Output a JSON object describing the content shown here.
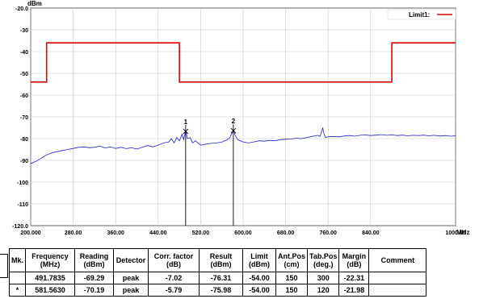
{
  "chart_data": {
    "type": "line",
    "y_unit": "dBm",
    "x_unit": "MHz",
    "ylim": [
      -120,
      -20
    ],
    "xlim": [
      200,
      1000
    ],
    "y_ticks": [
      {
        "v": -20,
        "label": "-20.0"
      },
      {
        "v": -30,
        "label": "-30"
      },
      {
        "v": -40,
        "label": "-40"
      },
      {
        "v": -50,
        "label": "-50"
      },
      {
        "v": -60,
        "label": "-60"
      },
      {
        "v": -70,
        "label": "-70"
      },
      {
        "v": -80,
        "label": "-80"
      },
      {
        "v": -90,
        "label": "-90"
      },
      {
        "v": -100,
        "label": "-100"
      },
      {
        "v": -110,
        "label": "-110"
      },
      {
        "v": -120,
        "label": "-120.0"
      }
    ],
    "x_ticks": [
      {
        "v": 200,
        "label": "200.000"
      },
      {
        "v": 280,
        "label": "280.00"
      },
      {
        "v": 360,
        "label": "360.00"
      },
      {
        "v": 440,
        "label": "440.00"
      },
      {
        "v": 520,
        "label": "520.00"
      },
      {
        "v": 600,
        "label": "600.00"
      },
      {
        "v": 680,
        "label": "680.00"
      },
      {
        "v": 760,
        "label": "760.00"
      },
      {
        "v": 840,
        "label": "840.00"
      },
      {
        "v": 1000,
        "label": "1000.00"
      }
    ],
    "grid": true,
    "legend": {
      "label": "Limit1:",
      "position": "top-right",
      "color": "#e00000"
    },
    "limit_line": {
      "color": "#e00000",
      "points": [
        [
          200,
          -54
        ],
        [
          230,
          -54
        ],
        [
          230,
          -36
        ],
        [
          480,
          -36
        ],
        [
          480,
          -54
        ],
        [
          880,
          -54
        ],
        [
          880,
          -36
        ],
        [
          1000,
          -36
        ]
      ]
    },
    "trace": {
      "color": "#2020c8",
      "points": [
        [
          200,
          -91.5
        ],
        [
          210,
          -90.5
        ],
        [
          220,
          -89
        ],
        [
          230,
          -87.5
        ],
        [
          240,
          -86.5
        ],
        [
          250,
          -86
        ],
        [
          260,
          -85.5
        ],
        [
          270,
          -85
        ],
        [
          280,
          -84.5
        ],
        [
          290,
          -84
        ],
        [
          300,
          -83.8
        ],
        [
          310,
          -84.2
        ],
        [
          320,
          -84
        ],
        [
          330,
          -83.5
        ],
        [
          340,
          -84.3
        ],
        [
          350,
          -83.8
        ],
        [
          360,
          -84.5
        ],
        [
          370,
          -84
        ],
        [
          380,
          -84.6
        ],
        [
          390,
          -84.2
        ],
        [
          400,
          -84.8
        ],
        [
          410,
          -84
        ],
        [
          420,
          -83.2
        ],
        [
          430,
          -83.8
        ],
        [
          440,
          -83
        ],
        [
          450,
          -82
        ],
        [
          460,
          -81.5
        ],
        [
          465,
          -80
        ],
        [
          470,
          -82
        ],
        [
          475,
          -79.5
        ],
        [
          480,
          -81
        ],
        [
          485,
          -78
        ],
        [
          488,
          -80.5
        ],
        [
          491.8,
          -76.3
        ],
        [
          495,
          -80
        ],
        [
          500,
          -79.5
        ],
        [
          505,
          -82
        ],
        [
          510,
          -81
        ],
        [
          515,
          -82
        ],
        [
          520,
          -83
        ],
        [
          530,
          -82.5
        ],
        [
          540,
          -82.2
        ],
        [
          550,
          -82
        ],
        [
          560,
          -81.6
        ],
        [
          570,
          -80.5
        ],
        [
          575,
          -79.5
        ],
        [
          578,
          -78
        ],
        [
          581.6,
          -76
        ],
        [
          585,
          -78.5
        ],
        [
          590,
          -80.5
        ],
        [
          600,
          -81.5
        ],
        [
          610,
          -82
        ],
        [
          620,
          -81.5
        ],
        [
          630,
          -81
        ],
        [
          640,
          -81.2
        ],
        [
          650,
          -80.8
        ],
        [
          660,
          -81
        ],
        [
          670,
          -80.5
        ],
        [
          680,
          -80.3
        ],
        [
          690,
          -80.2
        ],
        [
          700,
          -79.8
        ],
        [
          710,
          -80
        ],
        [
          720,
          -79.5
        ],
        [
          730,
          -79
        ],
        [
          740,
          -78.5
        ],
        [
          745,
          -79
        ],
        [
          750,
          -75
        ],
        [
          752,
          -77.5
        ],
        [
          755,
          -79.5
        ],
        [
          760,
          -79.2
        ],
        [
          770,
          -79
        ],
        [
          780,
          -79.2
        ],
        [
          790,
          -78.8
        ],
        [
          800,
          -78.6
        ],
        [
          810,
          -78.9
        ],
        [
          820,
          -78.5
        ],
        [
          830,
          -78.3
        ],
        [
          840,
          -78.6
        ],
        [
          850,
          -78.4
        ],
        [
          860,
          -78.2
        ],
        [
          870,
          -78.5
        ],
        [
          880,
          -78.3
        ],
        [
          890,
          -78.6
        ],
        [
          900,
          -78.4
        ],
        [
          910,
          -78.7
        ],
        [
          920,
          -78.5
        ],
        [
          930,
          -78.6
        ],
        [
          940,
          -78.4
        ],
        [
          950,
          -78.7
        ],
        [
          960,
          -78.5
        ],
        [
          970,
          -78.8
        ],
        [
          980,
          -78.6
        ],
        [
          990,
          -78.9
        ],
        [
          1000,
          -78.7
        ]
      ]
    },
    "markers": [
      {
        "label": "1",
        "x": 491.7835,
        "y": -76.31
      },
      {
        "label": "2",
        "x": 581.563,
        "y": -75.98
      }
    ]
  },
  "table": {
    "headers": [
      {
        "l1": "Mk.",
        "l2": ""
      },
      {
        "l1": "Frequency",
        "l2": "(MHz)"
      },
      {
        "l1": "Reading",
        "l2": "(dBm)"
      },
      {
        "l1": "Detector",
        "l2": ""
      },
      {
        "l1": "Corr. factor",
        "l2": "(dB)"
      },
      {
        "l1": "Result",
        "l2": "(dBm)"
      },
      {
        "l1": "Limit",
        "l2": "(dBm)"
      },
      {
        "l1": "Ant.Pos",
        "l2": "(cm)"
      },
      {
        "l1": "Tab.Pos",
        "l2": "(deg.)"
      },
      {
        "l1": "Margin",
        "l2": "(dB)"
      },
      {
        "l1": "Comment",
        "l2": ""
      }
    ],
    "rows": [
      [
        "",
        "491.7835",
        "-69.29",
        "peak",
        "-7.02",
        "-76.31",
        "-54.00",
        "150",
        "300",
        "-22.31",
        ""
      ],
      [
        "*",
        "581.5630",
        "-70.19",
        "peak",
        "-5.79",
        "-75.98",
        "-54.00",
        "150",
        "120",
        "-21.98",
        ""
      ]
    ]
  }
}
